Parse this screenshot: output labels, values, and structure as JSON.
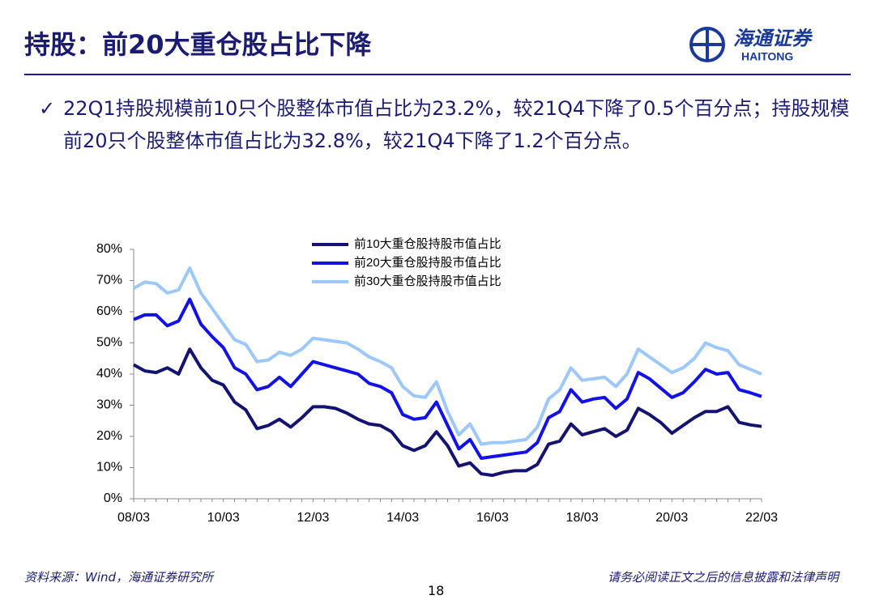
{
  "header": {
    "title": "持股：前20大重仓股占比下降",
    "logo_cn": "海通证券",
    "logo_en": "HAITONG"
  },
  "bullet": "22Q1持股规模前10只个股整体市值占比为23.2%，较21Q4下降了0.5个百分点；持股规模前20只个股整体市值占比为32.8%，较21Q4下降了1.2个百分点。",
  "chart_data": {
    "type": "line",
    "categories": [
      "08/03",
      null,
      null,
      null,
      null,
      null,
      null,
      null,
      "10/03",
      null,
      null,
      null,
      null,
      null,
      null,
      null,
      "12/03",
      null,
      null,
      null,
      null,
      null,
      null,
      null,
      "14/03",
      null,
      null,
      null,
      null,
      null,
      null,
      null,
      "16/03",
      null,
      null,
      null,
      null,
      null,
      null,
      null,
      "18/03",
      null,
      null,
      null,
      null,
      null,
      null,
      null,
      "20/03",
      null,
      null,
      null,
      null,
      null,
      null,
      null,
      "22/03"
    ],
    "series": [
      {
        "name": "前10大重仓股持股市值占比",
        "color": "#141470",
        "values": [
          43,
          41,
          40.5,
          42,
          40,
          48,
          42,
          38,
          36.5,
          31,
          28.5,
          22.5,
          23.5,
          25.5,
          23,
          26,
          29.5,
          29.5,
          29,
          27.5,
          25.5,
          24,
          23.5,
          21.5,
          17,
          15.5,
          17,
          21.5,
          17,
          10.5,
          11.5,
          8,
          7.5,
          8.5,
          9,
          9,
          11,
          17.5,
          18.5,
          24,
          20.5,
          21.5,
          22.5,
          20,
          22,
          29,
          27,
          24.5,
          21,
          23.5,
          26,
          28,
          28,
          29.5,
          24.5,
          23.7,
          23.2
        ]
      },
      {
        "name": "前20大重仓股持股市值占比",
        "color": "#1212e6",
        "values": [
          57.5,
          59,
          59,
          55.5,
          57,
          64,
          56,
          52,
          48.5,
          42,
          40,
          35,
          36,
          39,
          36,
          40,
          44,
          43,
          42,
          41,
          40,
          37,
          36,
          34,
          27,
          25.5,
          26,
          31,
          23.5,
          16,
          19,
          13,
          13.5,
          14,
          14.5,
          15,
          18,
          26,
          28,
          35,
          31,
          32,
          32.5,
          29,
          32,
          40.5,
          38.5,
          35.5,
          32.5,
          34,
          37.5,
          41.5,
          40,
          40.5,
          35,
          34,
          32.8
        ]
      },
      {
        "name": "前30大重仓股持股市值占比",
        "color": "#9cc8fa",
        "values": [
          67.5,
          69.5,
          69,
          66,
          67,
          74,
          66,
          61,
          56,
          51,
          49.5,
          44,
          44.5,
          47,
          46,
          48,
          51.5,
          51,
          50.5,
          50,
          48,
          45.5,
          44,
          42,
          36,
          33,
          32.5,
          37.5,
          28,
          20.5,
          24,
          17.5,
          18,
          18,
          18.5,
          19,
          23,
          32,
          35,
          42,
          38,
          38.5,
          39,
          36,
          40,
          48,
          45.5,
          43,
          40.5,
          42,
          45,
          50,
          48.5,
          47.5,
          43,
          41.5,
          40
        ]
      }
    ],
    "ylim": [
      0,
      80
    ],
    "yticks": [
      {
        "value": 0,
        "label": "0%"
      },
      {
        "value": 10,
        "label": "10%"
      },
      {
        "value": 20,
        "label": "20%"
      },
      {
        "value": 30,
        "label": "30%"
      },
      {
        "value": 40,
        "label": "40%"
      },
      {
        "value": 50,
        "label": "50%"
      },
      {
        "value": 60,
        "label": "60%"
      },
      {
        "value": 70,
        "label": "70%"
      },
      {
        "value": 80,
        "label": "80%"
      }
    ],
    "grid": false,
    "legend": "top"
  },
  "footer": {
    "source": "资料来源：Wind，海通证券研究所",
    "disclaimer": "请务必阅读正文之后的信息披露和法律声明",
    "page": "18"
  }
}
